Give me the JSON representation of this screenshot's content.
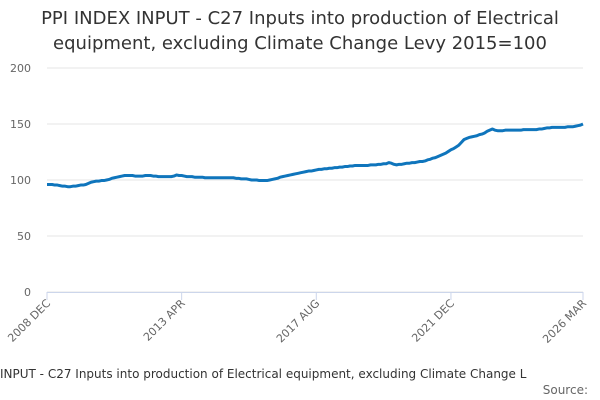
{
  "chart_data": {
    "type": "line",
    "title": "PPI INDEX INPUT - C27 Inputs into production of Electrical equipment, excluding Climate Change Levy 2015=100",
    "caption": "INPUT - C27 Inputs into production of Electrical equipment, excluding Climate Change L",
    "source": "Source:",
    "color": "#0f75bc",
    "ylim": [
      0,
      200
    ],
    "yticks": [
      0,
      50,
      100,
      150,
      200
    ],
    "grid": true,
    "categories": [
      "2008 DEC",
      null,
      null,
      null,
      null,
      null,
      null,
      null,
      null,
      null,
      null,
      null,
      null,
      null,
      null,
      null,
      null,
      null,
      null,
      null,
      null,
      null,
      null,
      null,
      null,
      null,
      null,
      null,
      null,
      null,
      null,
      null,
      null,
      null,
      null,
      null,
      null,
      null,
      null,
      null,
      null,
      null,
      null,
      null,
      null,
      null,
      null,
      null,
      null,
      null,
      null,
      null,
      "2013 APR",
      null,
      null,
      null,
      null,
      null,
      null,
      null,
      null,
      null,
      null,
      null,
      null,
      null,
      null,
      null,
      null,
      null,
      null,
      null,
      null,
      null,
      null,
      null,
      null,
      null,
      null,
      null,
      null,
      null,
      null,
      null,
      null,
      null,
      null,
      null,
      null,
      null,
      null,
      null,
      null,
      null,
      null,
      null,
      null,
      null,
      null,
      null,
      null,
      null,
      null,
      null,
      "2017 AUG",
      null,
      null,
      null,
      null,
      null,
      null,
      null,
      null,
      null,
      null,
      null,
      null,
      null,
      null,
      null,
      null,
      null,
      null,
      null,
      null,
      null,
      null,
      null,
      null,
      null,
      null,
      null,
      null,
      null,
      null,
      null,
      null,
      null,
      null,
      null,
      null,
      null,
      null,
      null,
      null,
      null,
      null,
      null,
      null,
      null,
      null,
      null,
      null,
      null,
      null,
      null,
      "2021 DEC",
      null,
      null,
      null,
      null,
      null,
      null,
      null,
      null,
      null,
      null,
      null,
      null,
      null,
      null,
      null,
      null,
      null,
      null,
      null,
      null,
      null,
      null,
      null,
      null,
      null,
      null,
      null,
      null,
      null,
      null,
      null,
      null,
      null,
      null,
      null,
      null,
      null,
      null,
      null,
      null,
      null,
      null,
      null,
      null,
      null,
      null,
      null,
      null,
      null,
      null,
      "2026 MAR"
    ],
    "values": [
      96,
      96,
      96,
      95.5,
      95.5,
      95,
      94.5,
      94.5,
      94,
      94,
      94.5,
      94.5,
      95,
      95.5,
      95.5,
      96,
      97,
      98,
      98.5,
      99,
      99,
      99.5,
      99.5,
      100,
      100.5,
      101.5,
      102,
      102.5,
      103,
      103.5,
      104,
      104,
      104,
      104,
      103.5,
      103.5,
      103.5,
      103.5,
      104,
      104,
      104,
      103.5,
      103.5,
      103,
      103,
      103,
      103,
      103,
      103,
      103.5,
      104.5,
      104,
      104,
      103.5,
      103,
      103,
      103,
      102.5,
      102.5,
      102.5,
      102.5,
      102,
      102,
      102,
      102,
      102,
      102,
      102,
      102,
      102,
      102,
      102,
      102,
      101.5,
      101.5,
      101,
      101,
      101,
      100.5,
      100,
      100,
      100,
      99.5,
      99.5,
      99.5,
      99.5,
      100,
      100.5,
      101,
      101.5,
      102.5,
      103,
      103.5,
      104,
      104.5,
      105,
      105.5,
      106,
      106.5,
      107,
      107.5,
      108,
      108,
      108.5,
      109,
      109.5,
      109.5,
      110,
      110,
      110.5,
      110.5,
      111,
      111,
      111.5,
      111.5,
      112,
      112,
      112.5,
      112.5,
      113,
      113,
      113,
      113,
      113,
      113,
      113.5,
      113.5,
      113.5,
      114,
      114,
      114.5,
      114.5,
      115.5,
      115,
      114,
      113.5,
      114,
      114,
      114.5,
      115,
      115,
      115.5,
      115.5,
      116,
      116.5,
      116.5,
      117,
      118,
      118.5,
      119.5,
      120,
      121,
      122,
      123,
      124,
      125.5,
      127,
      128,
      129.5,
      131,
      133.5,
      136,
      137,
      138,
      138.5,
      139,
      139.5,
      140.5,
      141,
      142,
      143.5,
      144.5,
      145.5,
      144.5,
      144,
      144,
      144,
      144.5,
      144.5,
      144.5,
      144.5,
      144.5,
      144.5,
      144.5,
      145,
      145,
      145,
      145,
      145,
      145,
      145.5,
      145.5,
      146,
      146.5,
      146.5,
      147,
      147,
      147,
      147,
      147,
      147,
      147.5,
      147.5,
      147.5,
      148,
      148.5,
      149,
      150
    ]
  }
}
